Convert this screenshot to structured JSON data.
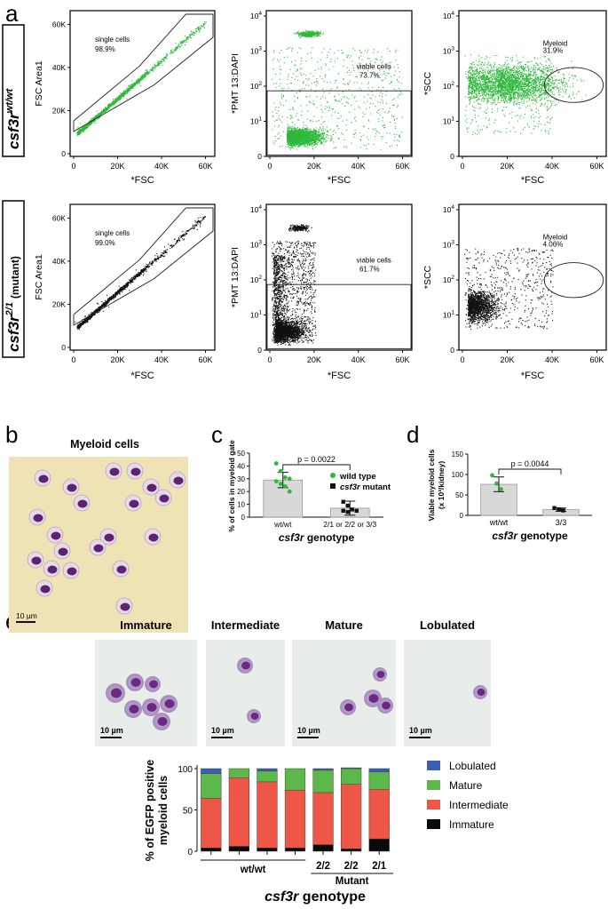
{
  "panel_letters": {
    "a": "a",
    "b": "b",
    "c": "c",
    "d": "d",
    "e": "e"
  },
  "genotypes": {
    "wt": {
      "main": "csf3r",
      "sup": "wt/wt",
      "suffix": ""
    },
    "mut": {
      "main": "csf3r",
      "sup": "2/1",
      "suffix": "(mutant)"
    }
  },
  "flow_panels": [
    {
      "id": "fsc-area",
      "ylabel": "FSC Area1",
      "xlabel": "*FSC",
      "xticks": [
        "0",
        "20K",
        "40K",
        "60K"
      ],
      "yticks": [
        "0",
        "20K",
        "40K",
        "60K"
      ],
      "gates": {
        "wt": {
          "name": "single cells",
          "pct": "98.9%"
        },
        "mut": {
          "name": "single cells",
          "pct": "99.0%"
        }
      }
    },
    {
      "id": "dapi",
      "ylabel": "*PMT 13:DAPI",
      "xlabel": "*FSC",
      "xticks": [
        "0",
        "20K",
        "40K",
        "60K"
      ],
      "yticks": [
        "0",
        "10^1",
        "10^2",
        "10^3",
        "10^4"
      ],
      "gates": {
        "wt": {
          "name": "viable cells",
          "pct": "73.7%"
        },
        "mut": {
          "name": "viable cells",
          "pct": "61.7%"
        }
      }
    },
    {
      "id": "scc",
      "ylabel": "*SCC",
      "xlabel": "*FSC",
      "xticks": [
        "0",
        "20K",
        "40K",
        "60K"
      ],
      "yticks": [
        "0",
        "10^1",
        "10^2",
        "10^3",
        "10^4"
      ],
      "gates": {
        "wt": {
          "name": "Myeloid",
          "pct": "31.9%"
        },
        "mut": {
          "name": "Myeloid",
          "pct": "4.06%"
        }
      }
    }
  ],
  "micro_b": {
    "title": "Myeloid cells",
    "scale": "10 µm"
  },
  "micro_e": [
    {
      "label": "Immature",
      "scale": "10 µm"
    },
    {
      "label": "Intermediate",
      "scale": "10 µm"
    },
    {
      "label": "Mature",
      "scale": "10 µm"
    },
    {
      "label": "Lobulated",
      "scale": "10 µm"
    }
  ],
  "colors": {
    "wt_dots": "#2db83a",
    "mut_dots": "#111111",
    "lobulated": "#3b5fb5",
    "mature": "#5cb848",
    "intermediate": "#ee5747",
    "immature": "#0a0a0a",
    "bar_fill": "#d8d8d8"
  },
  "chart_data": [
    {
      "id": "c",
      "type": "bar",
      "title": "",
      "categories": [
        "wt/wt",
        "2/1 or 2/2 or 3/3"
      ],
      "values": [
        29,
        7
      ],
      "errors": [
        6,
        5.5
      ],
      "points": [
        [
          42,
          36,
          31,
          30,
          28,
          26,
          24,
          20
        ],
        [
          12,
          9,
          6,
          5,
          5,
          4
        ]
      ],
      "ylabel": "% of cells in myeloid gate",
      "xlabel_main": "csf3r",
      "xlabel_rest": "genotype",
      "ylim": [
        0,
        50
      ],
      "yticks": [
        0,
        10,
        20,
        30,
        40,
        50
      ],
      "pvalue": "p = 0.0022",
      "legend": [
        {
          "label": "wild type",
          "italic": "",
          "rest": "wild type"
        },
        {
          "label": "csf3r mutant",
          "italic": "csf3r",
          "rest": " mutant"
        }
      ]
    },
    {
      "id": "d",
      "type": "bar",
      "title": "",
      "categories": [
        "wt/wt",
        "3/3"
      ],
      "values": [
        76,
        14
      ],
      "errors": [
        18,
        4
      ],
      "points": [
        [
          98,
          78,
          64
        ],
        [
          18,
          15,
          12
        ]
      ],
      "ylabel_line1": "Viable myeloid cells",
      "ylabel_line2": "(x 10³/kidney)",
      "xlabel_main": "csf3r",
      "xlabel_rest": "genotype",
      "ylim": [
        0,
        150
      ],
      "yticks": [
        0,
        50,
        100,
        150
      ],
      "pvalue": "p = 0.0044"
    },
    {
      "id": "e",
      "type": "bar",
      "stacked": true,
      "categories": [
        "",
        "",
        "",
        "",
        "2/2",
        "2/2",
        "2/1"
      ],
      "group_labels": {
        "wt": "wt/wt",
        "mutant": "Mutant"
      },
      "series": [
        {
          "name": "Immature",
          "values": [
            4,
            6,
            4,
            4,
            8,
            3,
            15
          ]
        },
        {
          "name": "Intermediate",
          "values": [
            60,
            83,
            80,
            70,
            63,
            78,
            60
          ]
        },
        {
          "name": "Mature",
          "values": [
            30,
            11,
            13,
            26,
            27,
            19,
            21
          ]
        },
        {
          "name": "Lobulated",
          "values": [
            6,
            0,
            3,
            0,
            2,
            1,
            4
          ]
        }
      ],
      "ylabel_line1": "% of EGFP positive",
      "ylabel_line2": "myeloid cells",
      "xlabel_main": "csf3r",
      "xlabel_rest": "genotype",
      "ylim": [
        0,
        100
      ],
      "yticks": [
        0,
        50,
        100
      ],
      "legend_order": [
        "Lobulated",
        "Mature",
        "Intermediate",
        "Immature"
      ]
    }
  ]
}
